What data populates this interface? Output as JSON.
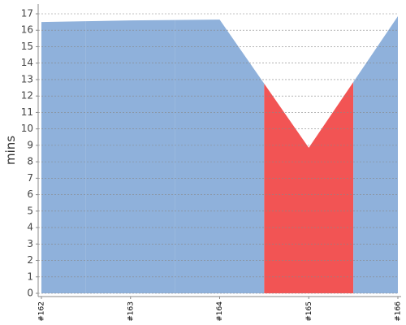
{
  "chart_data": {
    "type": "area",
    "ylabel": "mins",
    "categories": [
      "#162",
      "#163",
      "#164",
      "#165",
      "#166"
    ],
    "values": [
      16.5,
      16.6,
      16.65,
      8.85,
      16.85
    ],
    "colors": [
      "#8fb1db",
      "#8fb1db",
      "#8fb1db",
      "#f25454",
      "#8fb1db"
    ],
    "ylim": [
      0,
      17
    ],
    "yticks": [
      0,
      1,
      2,
      3,
      4,
      5,
      6,
      7,
      8,
      9,
      10,
      11,
      12,
      13,
      14,
      15,
      16,
      17
    ],
    "grid": true
  }
}
